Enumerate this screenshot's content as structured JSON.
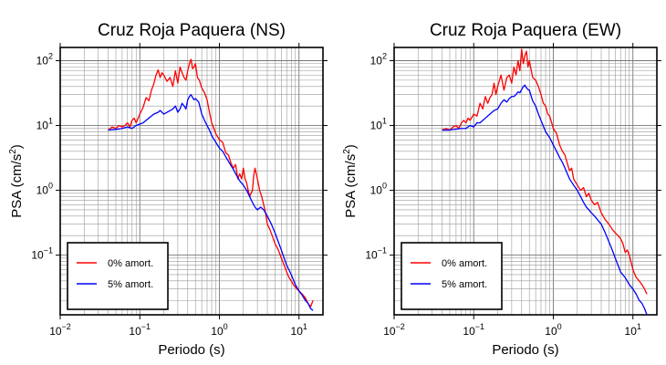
{
  "chart_data": [
    {
      "type": "line",
      "title": "Cruz Roja Paquera (NS)",
      "xlabel": "Periodo (s)",
      "ylabel_prefix": "PSA (cm/s",
      "ylabel_exp": "2",
      "ylabel_suffix": ")",
      "x_scale": "log",
      "y_scale": "log",
      "xlim": [
        0.01,
        20
      ],
      "ylim": [
        0.012,
        160
      ],
      "grid": true,
      "legend_position": "bottom-left",
      "x_ticks": [
        {
          "base": "10",
          "exp": "−2",
          "value": 0.01
        },
        {
          "base": "10",
          "exp": "−1",
          "value": 0.1
        },
        {
          "base": "10",
          "exp": "0",
          "value": 1
        },
        {
          "base": "10",
          "exp": "1",
          "value": 10
        }
      ],
      "y_ticks": [
        {
          "base": "10",
          "exp": "−1",
          "value": 0.1
        },
        {
          "base": "10",
          "exp": "0",
          "value": 1
        },
        {
          "base": "10",
          "exp": "1",
          "value": 10
        },
        {
          "base": "10",
          "exp": "2",
          "value": 100
        }
      ],
      "series": [
        {
          "name": "0% amort.",
          "color": "#ff0000",
          "x": [
            0.04,
            0.045,
            0.05,
            0.055,
            0.06,
            0.065,
            0.07,
            0.075,
            0.08,
            0.085,
            0.09,
            0.1,
            0.11,
            0.12,
            0.13,
            0.14,
            0.15,
            0.16,
            0.17,
            0.18,
            0.19,
            0.2,
            0.22,
            0.24,
            0.26,
            0.28,
            0.3,
            0.32,
            0.34,
            0.36,
            0.38,
            0.4,
            0.42,
            0.44,
            0.46,
            0.48,
            0.5,
            0.53,
            0.56,
            0.6,
            0.65,
            0.7,
            0.75,
            0.8,
            0.9,
            1.0,
            1.1,
            1.2,
            1.3,
            1.4,
            1.5,
            1.6,
            1.7,
            1.8,
            1.9,
            2.0,
            2.1,
            2.2,
            2.3,
            2.4,
            2.5,
            2.6,
            2.7,
            2.8,
            3.0,
            3.2,
            3.4,
            3.6,
            3.8,
            4.0,
            4.3,
            4.6,
            5.0,
            5.5,
            6.0,
            6.5,
            7.0,
            7.5,
            8.0,
            8.5,
            9.0,
            10,
            11,
            12,
            13,
            14,
            15
          ],
          "y": [
            8.5,
            9.5,
            9.0,
            10,
            9.5,
            10,
            11,
            9.5,
            12,
            13,
            11,
            15,
            19,
            27,
            24,
            35,
            44,
            60,
            72,
            55,
            65,
            60,
            48,
            55,
            40,
            70,
            45,
            80,
            65,
            55,
            50,
            70,
            90,
            105,
            75,
            80,
            90,
            55,
            50,
            38,
            32,
            25,
            16,
            11,
            7.5,
            6.0,
            5.5,
            3.8,
            3.5,
            2.6,
            2.2,
            2.5,
            1.5,
            1.8,
            1.5,
            2.2,
            1.5,
            1.3,
            1.0,
            0.8,
            0.9,
            1.0,
            1.7,
            2.2,
            1.5,
            1.0,
            0.8,
            0.6,
            0.45,
            0.3,
            0.25,
            0.2,
            0.15,
            0.12,
            0.09,
            0.07,
            0.055,
            0.045,
            0.04,
            0.035,
            0.032,
            0.028,
            0.025,
            0.022,
            0.018,
            0.016,
            0.02
          ]
        },
        {
          "name": "5% amort.",
          "color": "#0000ff",
          "x": [
            0.04,
            0.05,
            0.06,
            0.07,
            0.08,
            0.09,
            0.1,
            0.11,
            0.12,
            0.13,
            0.14,
            0.15,
            0.16,
            0.17,
            0.18,
            0.19,
            0.2,
            0.22,
            0.24,
            0.26,
            0.28,
            0.3,
            0.32,
            0.34,
            0.36,
            0.38,
            0.4,
            0.42,
            0.44,
            0.46,
            0.48,
            0.5,
            0.55,
            0.6,
            0.65,
            0.7,
            0.75,
            0.8,
            0.9,
            1.0,
            1.1,
            1.2,
            1.3,
            1.4,
            1.5,
            1.6,
            1.8,
            2.0,
            2.2,
            2.4,
            2.6,
            2.8,
            3.0,
            3.3,
            3.6,
            4.0,
            4.5,
            5.0,
            5.5,
            6.0,
            6.5,
            7.0,
            8.0,
            9.0,
            10,
            11,
            12,
            13,
            14,
            15
          ],
          "y": [
            8.5,
            8.7,
            9.0,
            9.5,
            9.0,
            10,
            10.5,
            11,
            12,
            13,
            14,
            15,
            15.5,
            16,
            17,
            16,
            15,
            16,
            17,
            18,
            20,
            16,
            18,
            22,
            20,
            18,
            25,
            28,
            30,
            27,
            25,
            26,
            23,
            15,
            12,
            10,
            8.5,
            7.0,
            5.5,
            4.5,
            4.0,
            3.3,
            2.8,
            2.4,
            2.1,
            1.8,
            1.4,
            1.2,
            1.0,
            0.8,
            0.65,
            0.55,
            0.5,
            0.55,
            0.5,
            0.4,
            0.3,
            0.22,
            0.16,
            0.12,
            0.09,
            0.07,
            0.05,
            0.035,
            0.028,
            0.024,
            0.02,
            0.018,
            0.015,
            0.014
          ]
        }
      ]
    },
    {
      "type": "line",
      "title": "Cruz Roja Paquera (EW)",
      "xlabel": "Periodo (s)",
      "ylabel_prefix": "PSA (cm/s",
      "ylabel_exp": "2",
      "ylabel_suffix": ")",
      "x_scale": "log",
      "y_scale": "log",
      "xlim": [
        0.01,
        20
      ],
      "ylim": [
        0.012,
        160
      ],
      "grid": true,
      "legend_position": "bottom-left",
      "x_ticks": [
        {
          "base": "10",
          "exp": "−2",
          "value": 0.01
        },
        {
          "base": "10",
          "exp": "−1",
          "value": 0.1
        },
        {
          "base": "10",
          "exp": "0",
          "value": 1
        },
        {
          "base": "10",
          "exp": "1",
          "value": 10
        }
      ],
      "y_ticks": [
        {
          "base": "10",
          "exp": "−1",
          "value": 0.1
        },
        {
          "base": "10",
          "exp": "0",
          "value": 1
        },
        {
          "base": "10",
          "exp": "1",
          "value": 10
        },
        {
          "base": "10",
          "exp": "2",
          "value": 100
        }
      ],
      "series": [
        {
          "name": "0% amort.",
          "color": "#ff0000",
          "x": [
            0.04,
            0.045,
            0.05,
            0.055,
            0.06,
            0.065,
            0.07,
            0.075,
            0.08,
            0.085,
            0.09,
            0.1,
            0.11,
            0.12,
            0.13,
            0.14,
            0.15,
            0.16,
            0.17,
            0.18,
            0.19,
            0.2,
            0.22,
            0.24,
            0.26,
            0.28,
            0.3,
            0.32,
            0.34,
            0.36,
            0.38,
            0.4,
            0.42,
            0.44,
            0.46,
            0.48,
            0.5,
            0.55,
            0.6,
            0.65,
            0.7,
            0.75,
            0.8,
            0.85,
            0.9,
            1.0,
            1.1,
            1.2,
            1.3,
            1.4,
            1.5,
            1.6,
            1.7,
            1.8,
            2.0,
            2.2,
            2.4,
            2.6,
            2.8,
            3.0,
            3.3,
            3.6,
            4.0,
            4.5,
            5.0,
            5.5,
            6.0,
            6.5,
            7.0,
            7.5,
            8.0,
            8.5,
            9.0,
            10,
            11,
            12,
            13,
            14,
            15
          ],
          "y": [
            8.5,
            9.0,
            8.5,
            9.5,
            10,
            9.0,
            11,
            12,
            11,
            13,
            12,
            15,
            14,
            22,
            18,
            28,
            22,
            27,
            30,
            45,
            30,
            40,
            60,
            35,
            55,
            60,
            45,
            80,
            60,
            100,
            70,
            150,
            90,
            120,
            140,
            80,
            100,
            55,
            50,
            40,
            30,
            22,
            20,
            15,
            14,
            9.0,
            7.5,
            5.0,
            4.0,
            3.5,
            2.6,
            2.0,
            2.2,
            1.5,
            1.2,
            1.0,
            1.1,
            0.8,
            0.9,
            0.7,
            0.6,
            0.65,
            0.45,
            0.35,
            0.3,
            0.25,
            0.22,
            0.2,
            0.18,
            0.15,
            0.11,
            0.12,
            0.1,
            0.06,
            0.045,
            0.04,
            0.035,
            0.03,
            0.025
          ]
        },
        {
          "name": "5% amort.",
          "color": "#0000ff",
          "x": [
            0.04,
            0.05,
            0.06,
            0.07,
            0.08,
            0.09,
            0.1,
            0.11,
            0.12,
            0.13,
            0.14,
            0.15,
            0.16,
            0.17,
            0.18,
            0.2,
            0.22,
            0.24,
            0.26,
            0.28,
            0.3,
            0.32,
            0.34,
            0.36,
            0.38,
            0.4,
            0.42,
            0.44,
            0.46,
            0.48,
            0.5,
            0.55,
            0.6,
            0.65,
            0.7,
            0.8,
            0.9,
            1.0,
            1.1,
            1.2,
            1.3,
            1.4,
            1.5,
            1.6,
            1.8,
            2.0,
            2.2,
            2.4,
            2.6,
            2.8,
            3.0,
            3.3,
            3.6,
            4.0,
            4.5,
            5.0,
            5.5,
            6.0,
            6.5,
            7.0,
            8.0,
            9.0,
            10,
            11,
            12,
            13,
            14,
            15
          ],
          "y": [
            8.5,
            8.5,
            8.8,
            9.0,
            9.0,
            10,
            9.5,
            11,
            11,
            12,
            13,
            14,
            15,
            16,
            17,
            18,
            22,
            25,
            23,
            26,
            28,
            28,
            30,
            33,
            32,
            36,
            40,
            42,
            38,
            36,
            35,
            24,
            20,
            15,
            12,
            8.0,
            6.5,
            5.0,
            4.0,
            3.2,
            2.7,
            2.2,
            1.8,
            1.5,
            1.2,
            1.0,
            0.8,
            0.65,
            0.55,
            0.5,
            0.45,
            0.4,
            0.35,
            0.3,
            0.22,
            0.16,
            0.12,
            0.09,
            0.07,
            0.055,
            0.045,
            0.035,
            0.03,
            0.025,
            0.02,
            0.018,
            0.015,
            0.012
          ]
        }
      ]
    }
  ]
}
